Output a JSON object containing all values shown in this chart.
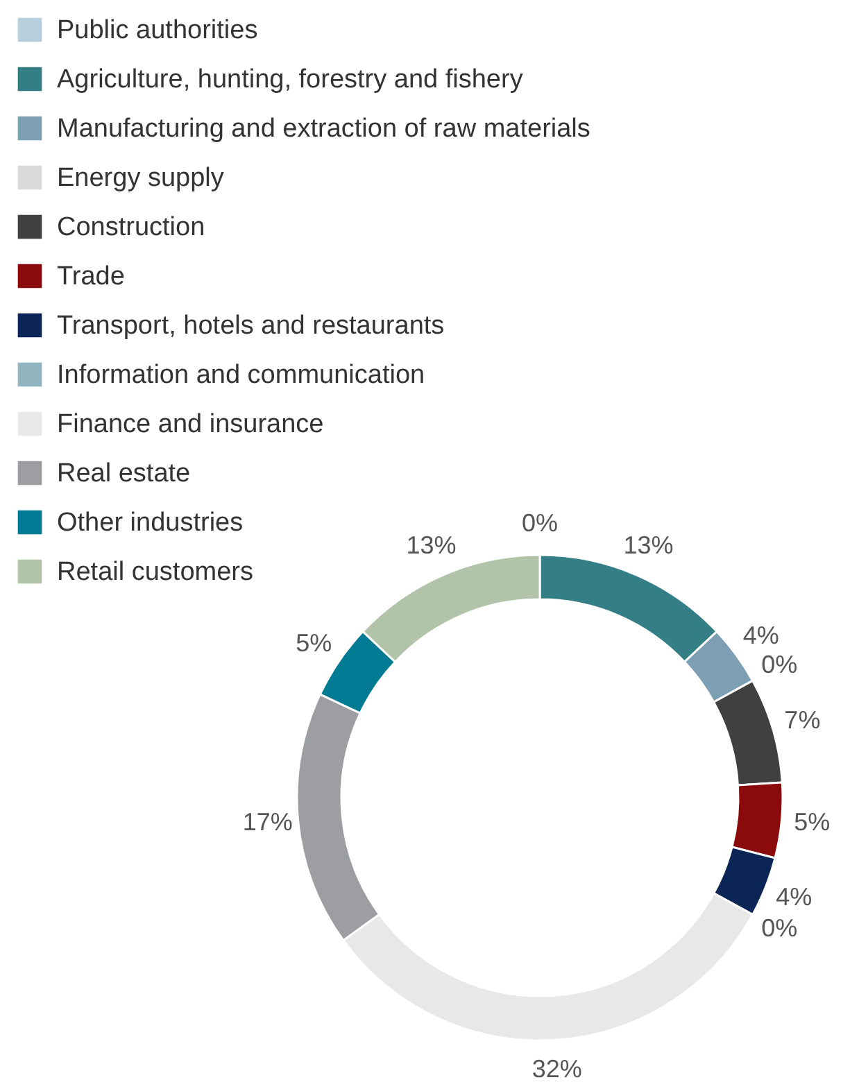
{
  "chart_data": {
    "type": "donut",
    "categories": [
      "Public authorities",
      "Agriculture, hunting, forestry and fishery",
      "Manufacturing and extraction of raw materials",
      "Energy supply",
      "Construction",
      "Trade",
      "Transport, hotels and restaurants",
      "Information and communication",
      "Finance and insurance",
      "Real estate",
      "Other industries",
      "Retail customers"
    ],
    "values": [
      0,
      13,
      4,
      0,
      7,
      5,
      4,
      0,
      32,
      17,
      5,
      13
    ],
    "value_labels": [
      "0%",
      "13%",
      "4%",
      "0%",
      "7%",
      "5%",
      "4%",
      "0%",
      "32%",
      "17%",
      "5%",
      "13%"
    ],
    "colors": [
      "#b7cfdc",
      "#347f86",
      "#7c9fb3",
      "#d9d9d9",
      "#404041",
      "#8b0a0b",
      "#0b2556",
      "#91b4bf",
      "#e8e8e8",
      "#9d9ea2",
      "#007b93",
      "#b1c3a9"
    ],
    "legend": "top left"
  }
}
